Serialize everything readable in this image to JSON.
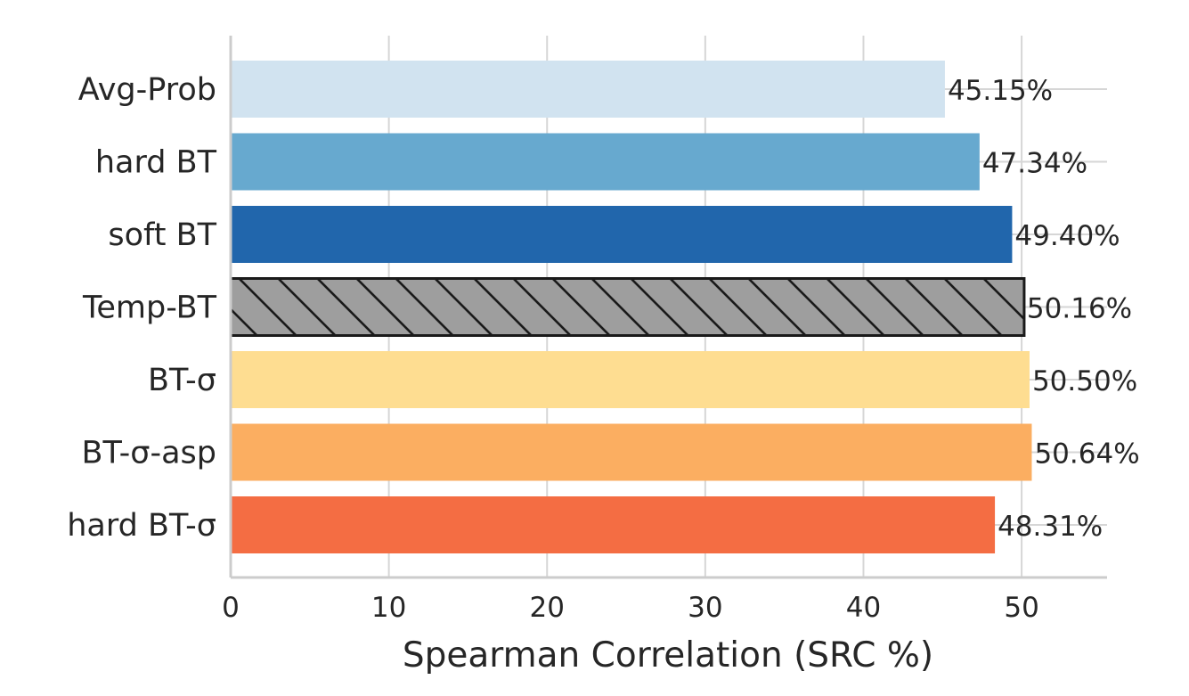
{
  "chart_data": {
    "type": "bar",
    "orientation": "horizontal",
    "title": "",
    "xlabel": "Spearman Correlation (SRC %)",
    "ylabel": "",
    "xlim": [
      0,
      55.4
    ],
    "x_ticks": [
      "0",
      "10",
      "20",
      "30",
      "40",
      "50"
    ],
    "grid": true,
    "categories": [
      "Avg-Prob",
      "hard BT",
      "soft BT",
      "Temp-BT",
      "BT-σ",
      "BT-σ-asp",
      "hard BT-σ"
    ],
    "values": [
      45.15,
      47.34,
      49.4,
      50.16,
      50.5,
      50.64,
      48.31
    ],
    "value_labels": [
      "45.15%",
      "47.34%",
      "49.40%",
      "50.16%",
      "50.50%",
      "50.64%",
      "48.31%"
    ],
    "colors": [
      "#d1e3f0",
      "#67a9cf",
      "#2166ac",
      "#9e9e9e",
      "#fedd91",
      "#fbae61",
      "#f46d43"
    ],
    "hatched": [
      false,
      false,
      false,
      true,
      false,
      false,
      false
    ]
  }
}
